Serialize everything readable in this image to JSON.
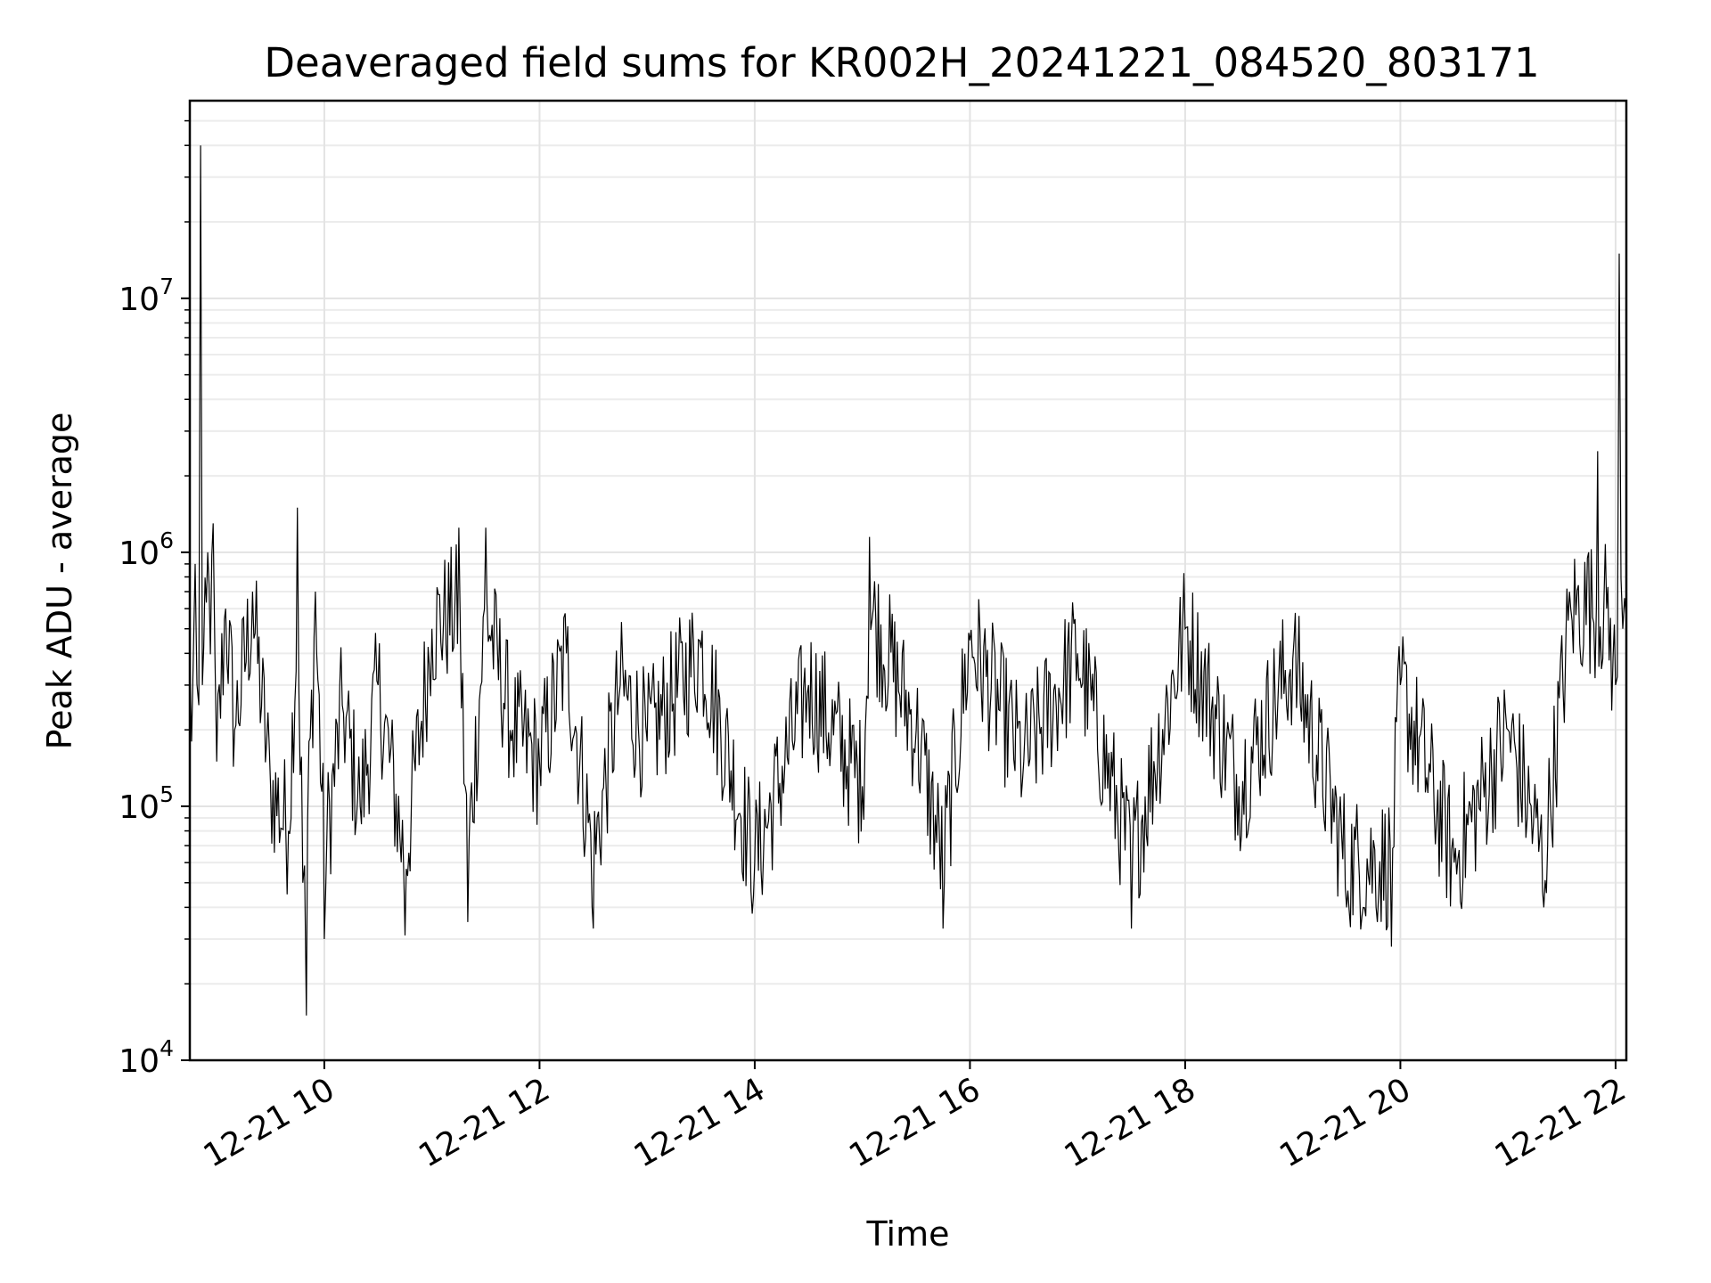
{
  "chart_data": {
    "type": "line",
    "title": "Deaveraged field sums for KR002H_20241221_084520_803171",
    "xlabel": "Time",
    "ylabel": "Peak ADU - average",
    "yscale": "log",
    "ylim": [
      10000,
      60000000
    ],
    "xlim": [
      "2024-12-21 08:45",
      "2024-12-21 22:06"
    ],
    "grid": true,
    "line_color": "#000000",
    "x_ticks": [
      {
        "x": "2024-12-21 10:00",
        "label": "12-21 10"
      },
      {
        "x": "2024-12-21 12:00",
        "label": "12-21 12"
      },
      {
        "x": "2024-12-21 14:00",
        "label": "12-21 14"
      },
      {
        "x": "2024-12-21 16:00",
        "label": "12-21 16"
      },
      {
        "x": "2024-12-21 18:00",
        "label": "12-21 18"
      },
      {
        "x": "2024-12-21 20:00",
        "label": "12-21 20"
      },
      {
        "x": "2024-12-21 22:00",
        "label": "12-21 22"
      }
    ],
    "y_ticks": [
      {
        "value": 10000,
        "base": "10",
        "exp": "4"
      },
      {
        "value": 100000,
        "base": "10",
        "exp": "5"
      },
      {
        "value": 1000000,
        "base": "10",
        "exp": "6"
      },
      {
        "value": 10000000,
        "base": "10",
        "exp": "7"
      }
    ],
    "series": [
      {
        "points": [
          [
            "2024-12-21 08:45",
            350000
          ],
          [
            "2024-12-21 08:46",
            180000
          ],
          [
            "2024-12-21 08:48",
            900000
          ],
          [
            "2024-12-21 08:50",
            250000
          ],
          [
            "2024-12-21 08:51",
            40000000
          ],
          [
            "2024-12-21 08:52",
            300000
          ],
          [
            "2024-12-21 08:55",
            1000000
          ],
          [
            "2024-12-21 08:58",
            1300000
          ],
          [
            "2024-12-21 09:00",
            150000
          ],
          [
            "2024-12-21 09:05",
            600000
          ],
          [
            "2024-12-21 09:10",
            200000
          ],
          [
            "2024-12-21 09:20",
            700000
          ],
          [
            "2024-12-21 09:30",
            120000
          ],
          [
            "2024-12-21 09:40",
            80000
          ],
          [
            "2024-12-21 09:45",
            1500000
          ],
          [
            "2024-12-21 09:48",
            50000
          ],
          [
            "2024-12-21 09:50",
            15000
          ],
          [
            "2024-12-21 09:55",
            700000
          ],
          [
            "2024-12-21 10:00",
            30000
          ],
          [
            "2024-12-21 10:10",
            250000
          ],
          [
            "2024-12-21 10:20",
            100000
          ],
          [
            "2024-12-21 10:30",
            300000
          ],
          [
            "2024-12-21 10:45",
            31000
          ],
          [
            "2024-12-21 11:00",
            500000
          ],
          [
            "2024-12-21 11:15",
            1250000
          ],
          [
            "2024-12-21 11:20",
            35000
          ],
          [
            "2024-12-21 11:30",
            1250000
          ],
          [
            "2024-12-21 11:45",
            200000
          ],
          [
            "2024-12-21 12:00",
            150000
          ],
          [
            "2024-12-21 12:15",
            400000
          ],
          [
            "2024-12-21 12:30",
            33000
          ],
          [
            "2024-12-21 12:45",
            300000
          ],
          [
            "2024-12-21 13:00",
            180000
          ],
          [
            "2024-12-21 13:30",
            420000
          ],
          [
            "2024-12-21 14:00",
            60000
          ],
          [
            "2024-12-21 14:30",
            300000
          ],
          [
            "2024-12-21 15:00",
            120000
          ],
          [
            "2024-12-21 15:04",
            1150000
          ],
          [
            "2024-12-21 15:30",
            200000
          ],
          [
            "2024-12-21 15:45",
            33000
          ],
          [
            "2024-12-21 16:00",
            450000
          ],
          [
            "2024-12-21 16:30",
            150000
          ],
          [
            "2024-12-21 17:00",
            400000
          ],
          [
            "2024-12-21 17:30",
            33000
          ],
          [
            "2024-12-21 18:00",
            500000
          ],
          [
            "2024-12-21 18:30",
            120000
          ],
          [
            "2024-12-21 19:00",
            380000
          ],
          [
            "2024-12-21 19:30",
            40000
          ],
          [
            "2024-12-21 19:55",
            28000
          ],
          [
            "2024-12-21 20:00",
            300000
          ],
          [
            "2024-12-21 20:30",
            60000
          ],
          [
            "2024-12-21 21:00",
            200000
          ],
          [
            "2024-12-21 21:20",
            40000
          ],
          [
            "2024-12-21 21:35",
            600000
          ],
          [
            "2024-12-21 21:45",
            1000000
          ],
          [
            "2024-12-21 21:50",
            2500000
          ],
          [
            "2024-12-21 21:55",
            600000
          ],
          [
            "2024-12-21 22:00",
            300000
          ],
          [
            "2024-12-21 22:02",
            15000000
          ],
          [
            "2024-12-21 22:04",
            500000
          ],
          [
            "2024-12-21 22:06",
            550000
          ]
        ]
      }
    ]
  }
}
